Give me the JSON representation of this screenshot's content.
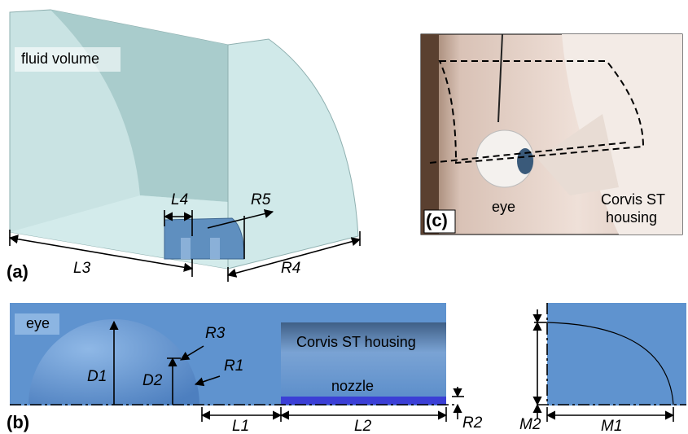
{
  "panel_a": {
    "label": "(a)",
    "region": "fluid volume",
    "dimensions": [
      "L4",
      "R5",
      "L3",
      "R4"
    ]
  },
  "panel_b": {
    "label": "(b)",
    "regions": [
      "eye",
      "Corvis ST housing",
      "nozzle"
    ],
    "dimensions": [
      "D1",
      "D2",
      "R3",
      "R1",
      "L1",
      "L2",
      "R2",
      "M2",
      "M1"
    ]
  },
  "panel_c": {
    "label": "(c)",
    "eye": "eye",
    "housing": [
      "Corvis ST",
      "housing"
    ]
  }
}
